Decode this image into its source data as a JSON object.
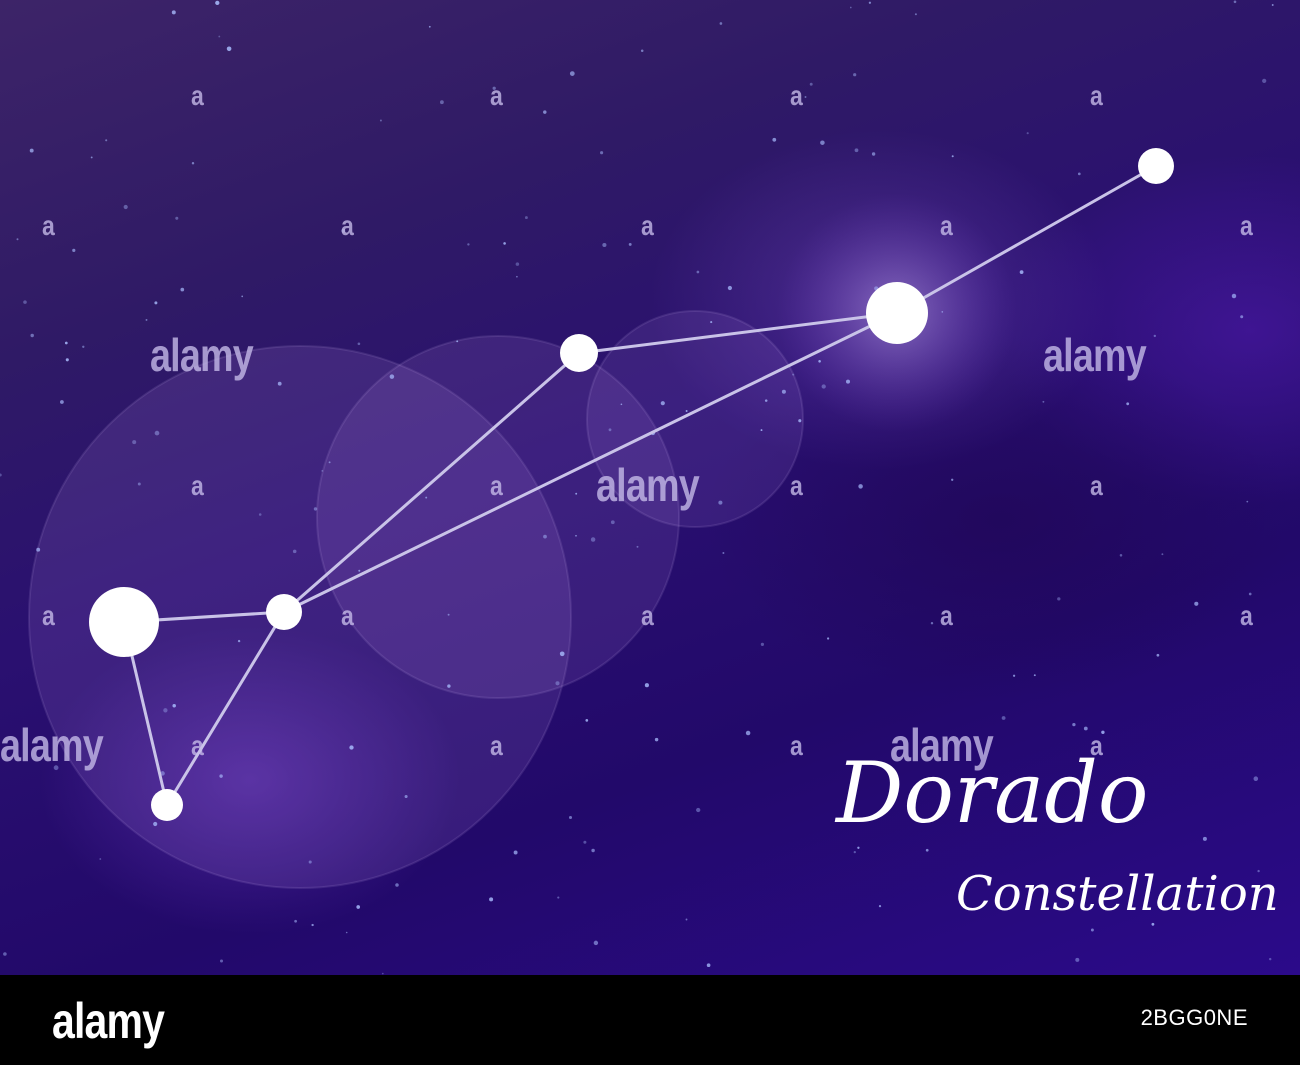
{
  "title": {
    "main": "Dorado",
    "sub": "Constellation"
  },
  "watermark": {
    "text": "alamy"
  },
  "footer": {
    "logo": "alamy",
    "image_id": "2BGG0NE"
  },
  "colors": {
    "sky_dark": "#22096a",
    "sky_violet": "#3d2468",
    "star": "#ffffff",
    "line": "#c9c3e8",
    "footer": "#000000"
  }
}
